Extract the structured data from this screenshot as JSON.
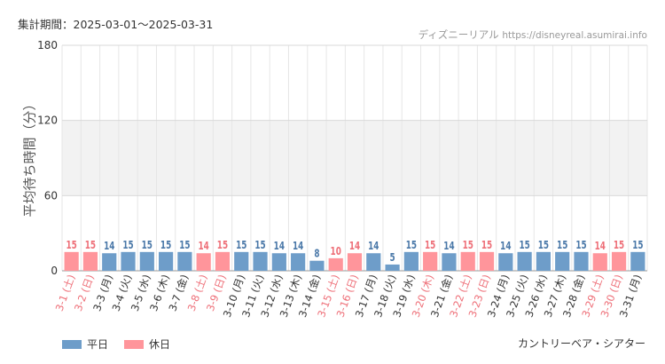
{
  "header": {
    "period": "集計期間：2025-03-01～2025-03-31",
    "site_name": "ディズニーリアル",
    "site_url": "https://disneyreal.asumirai.info"
  },
  "footer": {
    "attraction": "カントリーベア・シアター"
  },
  "colors": {
    "weekday": "#6e9dc9",
    "holiday": "#ff959b",
    "weekday_label": "#4a78a8",
    "holiday_label": "#ee6f78",
    "band": "#f2f2f2",
    "grid": "#e6e6e6"
  },
  "chart_data": {
    "type": "bar",
    "ylabel": "平均待ち時間（分）",
    "ylim": [
      0,
      180
    ],
    "yticks": [
      0,
      60,
      120,
      180
    ],
    "grid": true,
    "legend_position": "bottom-left",
    "series": [
      {
        "name": "平日",
        "color": "#6e9dc9"
      },
      {
        "name": "休日",
        "color": "#ff959b"
      }
    ],
    "categories": [
      "3-1 (土)",
      "3-2 (日)",
      "3-3 (月)",
      "3-4 (火)",
      "3-5 (水)",
      "3-6 (木)",
      "3-7 (金)",
      "3-8 (土)",
      "3-9 (日)",
      "3-10 (月)",
      "3-11 (火)",
      "3-12 (水)",
      "3-13 (木)",
      "3-14 (金)",
      "3-15 (土)",
      "3-16 (日)",
      "3-17 (月)",
      "3-18 (火)",
      "3-19 (水)",
      "3-20 (木)",
      "3-21 (金)",
      "3-22 (土)",
      "3-23 (日)",
      "3-24 (月)",
      "3-25 (火)",
      "3-26 (水)",
      "3-27 (木)",
      "3-28 (金)",
      "3-29 (土)",
      "3-30 (日)",
      "3-31 (月)"
    ],
    "values": [
      15,
      15,
      14,
      15,
      15,
      15,
      15,
      14,
      15,
      15,
      15,
      14,
      14,
      8,
      10,
      14,
      14,
      5,
      15,
      15,
      14,
      15,
      15,
      14,
      15,
      15,
      15,
      15,
      14,
      15,
      15
    ],
    "day_type": [
      "休日",
      "休日",
      "平日",
      "平日",
      "平日",
      "平日",
      "平日",
      "休日",
      "休日",
      "平日",
      "平日",
      "平日",
      "平日",
      "平日",
      "休日",
      "休日",
      "平日",
      "平日",
      "平日",
      "休日",
      "平日",
      "休日",
      "休日",
      "平日",
      "平日",
      "平日",
      "平日",
      "平日",
      "休日",
      "休日",
      "平日"
    ]
  }
}
